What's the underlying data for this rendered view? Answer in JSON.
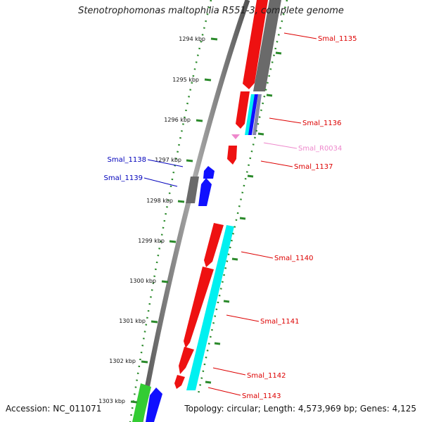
{
  "title": "Stenotrophomonas maltophilia R551-3, complete genome",
  "footer": {
    "accession": "Accession: NC_011071",
    "topology": "Topology: circular; Length: 4,573,969 bp; Genes: 4,125"
  },
  "colors": {
    "forward_cds": "#ff0000",
    "trna": "#ff00ff",
    "gray_feature": "#666666",
    "cyan_feature": "#00ffff",
    "blue_feature": "#0000ff",
    "green_feature": "#33cc33",
    "tick_green": "#2b8a2b",
    "label_red": "#dd0000",
    "label_blue": "#0000bb",
    "label_pink": "#ee88cc"
  },
  "scale_ticks": [
    {
      "label": "1294 kbp"
    },
    {
      "label": "1295 kbp"
    },
    {
      "label": "1296 kbp"
    },
    {
      "label": "1297 kbp"
    },
    {
      "label": "1298 kbp"
    },
    {
      "label": "1299 kbp"
    },
    {
      "label": "1300 kbp"
    },
    {
      "label": "1301 kbp"
    },
    {
      "label": "1302 kbp"
    },
    {
      "label": "1303 kbp"
    }
  ],
  "gene_labels": [
    {
      "name": "Smal_1135",
      "color": "#dd0000"
    },
    {
      "name": "Smal_1136",
      "color": "#dd0000"
    },
    {
      "name": "Smal_R0034",
      "color": "#ee88cc"
    },
    {
      "name": "Smal_1137",
      "color": "#dd0000"
    },
    {
      "name": "Smal_1138",
      "color": "#0000bb"
    },
    {
      "name": "Smal_1139",
      "color": "#0000bb"
    },
    {
      "name": "Smal_1140",
      "color": "#dd0000"
    },
    {
      "name": "Smal_1141",
      "color": "#dd0000"
    },
    {
      "name": "Smal_1142",
      "color": "#dd0000"
    },
    {
      "name": "Smal_1143",
      "color": "#dd0000"
    }
  ]
}
